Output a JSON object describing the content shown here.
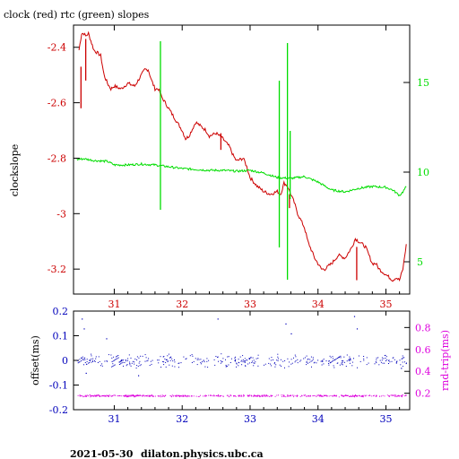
{
  "page": {
    "title": "clock (red) rtc (green) slopes",
    "footer_date": "2021-05-30",
    "footer_host": "dilaton.physics.ubc.ca"
  },
  "colors": {
    "clock": "#cc0000",
    "rtc": "#00dd00",
    "offset": "#0000bb",
    "rnd_trip": "#dd00dd",
    "axis": "#000000"
  },
  "chart_data": [
    {
      "type": "line",
      "title": "clock (red) rtc (green) slopes",
      "x_ticks": [
        "31",
        "32",
        "33",
        "34",
        "35"
      ],
      "xlim": [
        30.4,
        35.35
      ],
      "left_axis": {
        "label": "clockslope",
        "ticks": [
          "-2.4",
          "-2.6",
          "-2.8",
          "-3",
          "-3.2"
        ],
        "ylim": [
          -3.29,
          -2.32
        ],
        "color": "#cc0000"
      },
      "right_axis": {
        "label": "",
        "ticks": [
          "15",
          "10",
          "5"
        ],
        "ylim": [
          3.2,
          18.2
        ],
        "color": "#00dd00"
      },
      "series": [
        {
          "name": "clock",
          "axis": "left",
          "x": [
            30.48,
            30.52,
            30.55,
            30.58,
            30.62,
            30.7,
            30.75,
            30.8,
            30.85,
            30.9,
            30.95,
            31.0,
            31.1,
            31.2,
            31.3,
            31.4,
            31.45,
            31.5,
            31.55,
            31.6,
            31.65,
            31.7,
            31.75,
            31.8,
            31.9,
            31.95,
            32.0,
            32.05,
            32.1,
            32.2,
            32.3,
            32.35,
            32.4,
            32.5,
            32.6,
            32.7,
            32.75,
            32.8,
            32.9,
            32.95,
            33.0,
            33.1,
            33.2,
            33.3,
            33.4,
            33.45,
            33.5,
            33.55,
            33.6,
            33.65,
            33.7,
            33.8,
            33.85,
            33.9,
            33.95,
            34.0,
            34.05,
            34.1,
            34.2,
            34.3,
            34.4,
            34.5,
            34.55,
            34.6,
            34.7,
            34.75,
            34.8,
            34.85,
            34.9,
            35.0,
            35.1,
            35.15,
            35.2,
            35.25,
            35.3
          ],
          "y": [
            -2.41,
            -2.35,
            -2.35,
            -2.36,
            -2.35,
            -2.41,
            -2.42,
            -2.43,
            -2.5,
            -2.53,
            -2.55,
            -2.54,
            -2.55,
            -2.53,
            -2.54,
            -2.5,
            -2.48,
            -2.48,
            -2.52,
            -2.55,
            -2.55,
            -2.58,
            -2.6,
            -2.62,
            -2.66,
            -2.68,
            -2.7,
            -2.73,
            -2.72,
            -2.67,
            -2.69,
            -2.7,
            -2.72,
            -2.71,
            -2.73,
            -2.76,
            -2.79,
            -2.81,
            -2.8,
            -2.83,
            -2.87,
            -2.9,
            -2.92,
            -2.93,
            -2.92,
            -2.93,
            -2.89,
            -2.9,
            -2.93,
            -2.96,
            -3.0,
            -3.05,
            -3.1,
            -3.13,
            -3.16,
            -3.18,
            -3.2,
            -3.2,
            -3.18,
            -3.15,
            -3.16,
            -3.12,
            -3.09,
            -3.1,
            -3.12,
            -3.15,
            -3.18,
            -3.18,
            -3.2,
            -3.22,
            -3.24,
            -3.23,
            -3.24,
            -3.2,
            -3.11
          ]
        },
        {
          "name": "rtc",
          "axis": "right",
          "x": [
            30.45,
            30.55,
            30.7,
            30.9,
            31.0,
            31.2,
            31.4,
            31.6,
            31.8,
            32.0,
            32.2,
            32.4,
            32.6,
            32.8,
            33.0,
            33.2,
            33.4,
            33.6,
            33.8,
            34.0,
            34.2,
            34.4,
            34.6,
            34.8,
            35.0,
            35.1,
            35.2,
            35.25,
            35.3
          ],
          "y": [
            10.7,
            10.75,
            10.65,
            10.6,
            10.4,
            10.4,
            10.45,
            10.4,
            10.3,
            10.2,
            10.15,
            10.1,
            10.1,
            10.05,
            10.1,
            9.95,
            9.7,
            9.65,
            9.75,
            9.45,
            9.0,
            8.9,
            9.1,
            9.2,
            9.15,
            9.0,
            8.7,
            8.9,
            9.2
          ]
        }
      ],
      "spikes": [
        {
          "series": "clock",
          "x": 30.51,
          "y_from": -2.47,
          "y_to": -2.62
        },
        {
          "series": "clock",
          "x": 30.58,
          "y_from": -2.37,
          "y_to": -2.52
        },
        {
          "series": "clock",
          "x": 32.57,
          "y_from": -2.71,
          "y_to": -2.77
        },
        {
          "series": "clock",
          "x": 33.58,
          "y_from": -2.93,
          "y_to": -2.98
        },
        {
          "series": "clock",
          "x": 34.57,
          "y_from": -3.12,
          "y_to": -3.24
        },
        {
          "series": "rtc",
          "x": 31.68,
          "y_from": 17.3,
          "y_to": 7.9
        },
        {
          "series": "rtc",
          "x": 33.43,
          "y_from": 15.1,
          "y_to": 5.8
        },
        {
          "series": "rtc",
          "x": 33.55,
          "y_from": 17.2,
          "y_to": 4.0
        },
        {
          "series": "rtc",
          "x": 33.59,
          "y_from": 12.3,
          "y_to": 8.5
        }
      ]
    },
    {
      "type": "scatter",
      "x_ticks": [
        "31",
        "32",
        "33",
        "34",
        "35"
      ],
      "xlim": [
        30.4,
        35.35
      ],
      "left_axis": {
        "label": "offset(ms)",
        "ticks": [
          "0.2",
          "0.1",
          "0",
          "-0.1",
          "-0.2"
        ],
        "ylim": [
          -0.2,
          0.2
        ],
        "color": "#0000bb"
      },
      "right_axis": {
        "label": "rnd-trip(ms)",
        "ticks": [
          "0.8",
          "0.6",
          "0.4",
          "0.2"
        ],
        "ylim": [
          0.05,
          0.95
        ],
        "color": "#dd00dd"
      },
      "series": [
        {
          "name": "offset",
          "axis": "left",
          "x_range": [
            30.45,
            35.3
          ],
          "typical": 0.0,
          "spread": 0.03
        },
        {
          "name": "rnd-trip",
          "axis": "right",
          "x_range": [
            30.45,
            35.3
          ],
          "typical": 0.18,
          "spread": 0.01
        }
      ],
      "outliers": [
        {
          "series": "offset",
          "x": 30.52,
          "y": 0.17
        },
        {
          "series": "offset",
          "x": 30.55,
          "y": 0.13
        },
        {
          "series": "offset",
          "x": 30.58,
          "y": -0.05
        },
        {
          "series": "offset",
          "x": 30.88,
          "y": 0.09
        },
        {
          "series": "offset",
          "x": 31.35,
          "y": -0.06
        },
        {
          "series": "offset",
          "x": 32.52,
          "y": 0.17
        },
        {
          "series": "offset",
          "x": 33.52,
          "y": 0.15
        },
        {
          "series": "offset",
          "x": 33.6,
          "y": 0.11
        },
        {
          "series": "offset",
          "x": 34.53,
          "y": 0.18
        },
        {
          "series": "offset",
          "x": 34.57,
          "y": 0.13
        },
        {
          "series": "offset",
          "x": 35.22,
          "y": -0.03
        }
      ]
    }
  ]
}
